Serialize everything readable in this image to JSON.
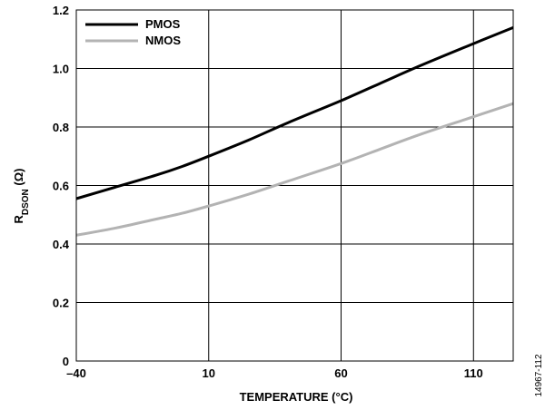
{
  "chart_data": {
    "type": "line",
    "xlabel": "TEMPERATURE (°C)",
    "ylabel_main": "R",
    "ylabel_sub": "DSON",
    "ylabel_unit": " (Ω)",
    "xlim": [
      -40,
      125
    ],
    "ylim": [
      0,
      1.2
    ],
    "x_ticks": [
      -40,
      10,
      60,
      110
    ],
    "x_tick_labels": [
      "–40",
      "10",
      "60",
      "110"
    ],
    "y_ticks": [
      0,
      0.2,
      0.4,
      0.6,
      0.8,
      1.0,
      1.2
    ],
    "y_tick_labels": [
      "0",
      "0.2",
      "0.4",
      "0.6",
      "0.8",
      "1.0",
      "1.2"
    ],
    "grid": true,
    "legend_position": "top-left",
    "series": [
      {
        "name": "PMOS",
        "color": "#000000",
        "x": [
          -40,
          -25,
          -10,
          0,
          10,
          25,
          40,
          60,
          75,
          90,
          110,
          125
        ],
        "y": [
          0.555,
          0.595,
          0.635,
          0.665,
          0.7,
          0.755,
          0.815,
          0.89,
          0.95,
          1.01,
          1.085,
          1.14
        ]
      },
      {
        "name": "NMOS",
        "color": "#b3b3b3",
        "x": [
          -40,
          -25,
          -10,
          0,
          10,
          25,
          40,
          60,
          75,
          90,
          110,
          125
        ],
        "y": [
          0.43,
          0.455,
          0.485,
          0.505,
          0.53,
          0.57,
          0.615,
          0.675,
          0.725,
          0.775,
          0.835,
          0.88
        ]
      }
    ]
  },
  "figure_id": "14967-112"
}
